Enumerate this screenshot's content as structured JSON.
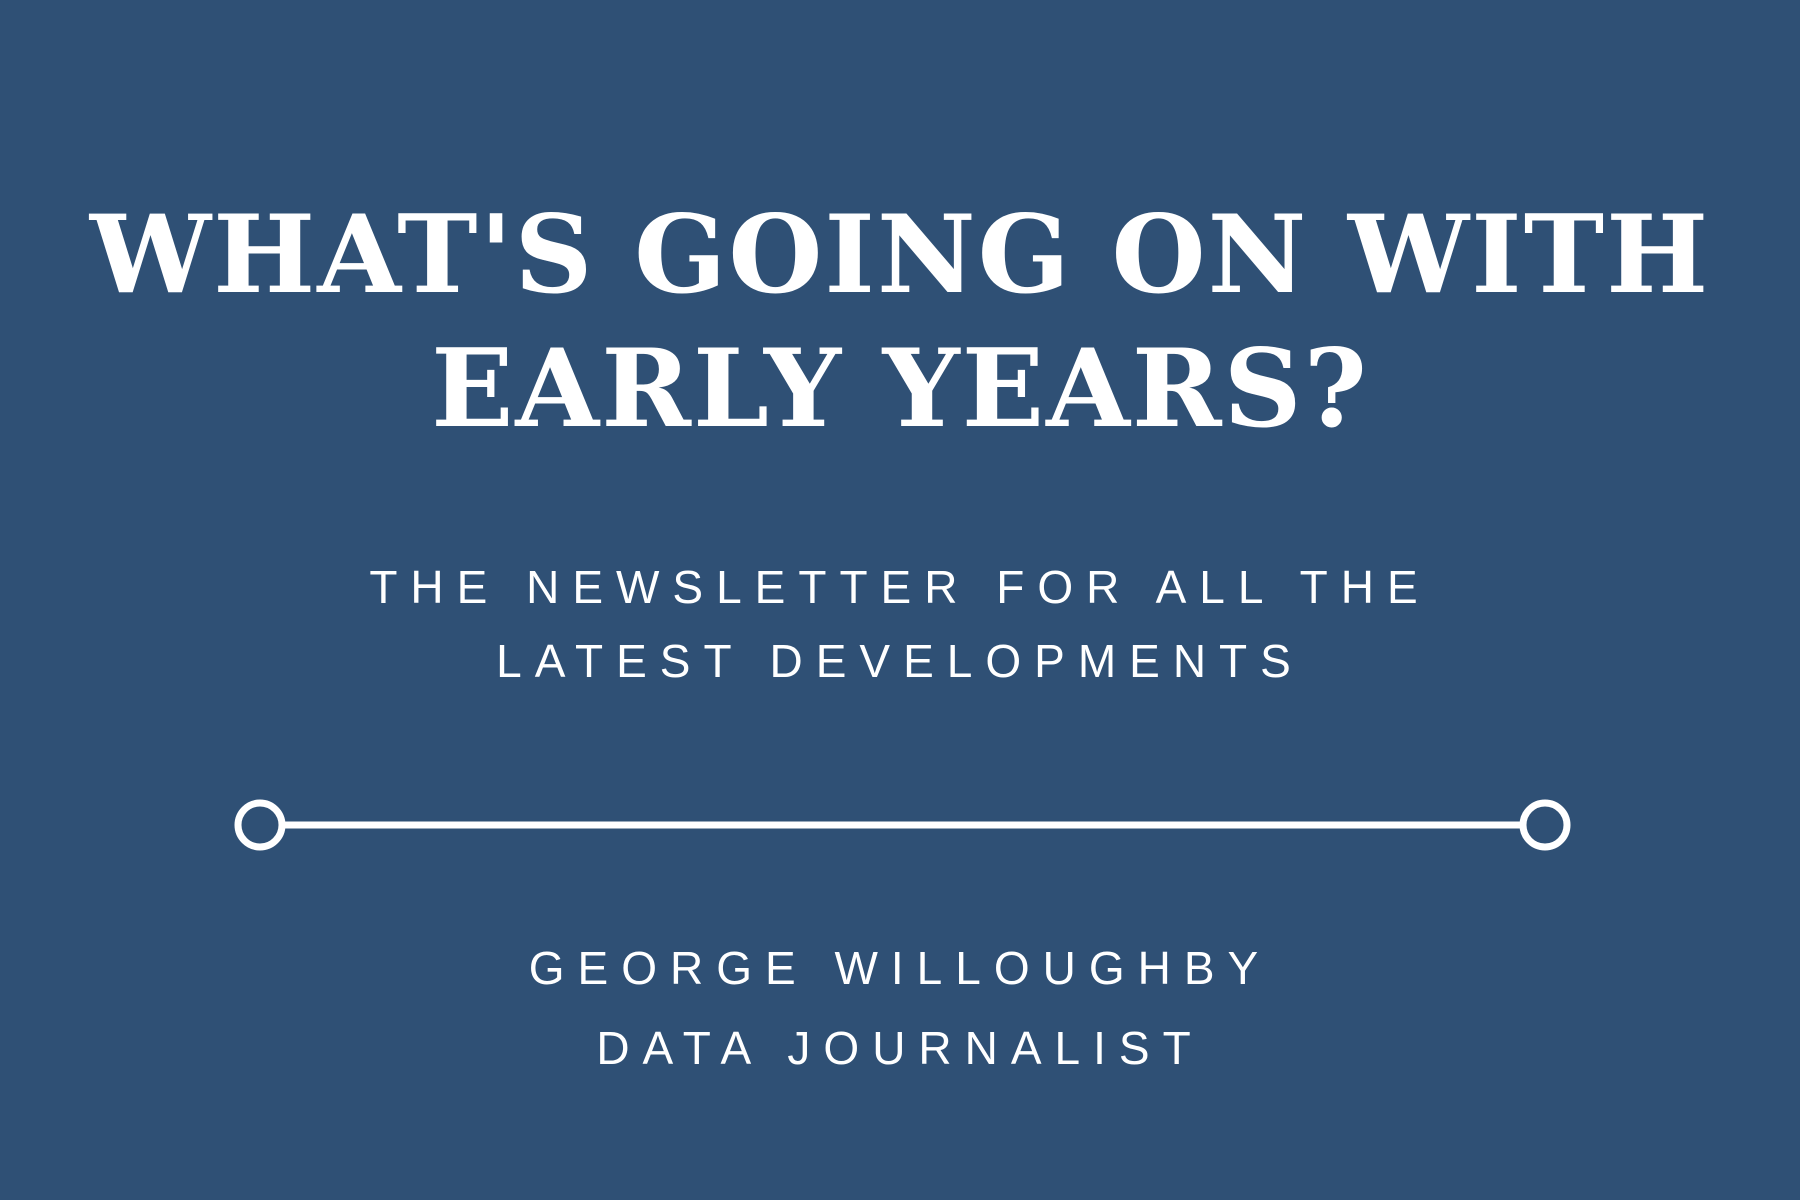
{
  "colors": {
    "background": "#2f5075",
    "foreground": "#ffffff"
  },
  "title": {
    "line1": "WHAT'S GOING ON WITH",
    "line2": "EARLY YEARS?"
  },
  "subtitle": {
    "line1": "THE NEWSLETTER FOR ALL THE",
    "line2": "LATEST DEVELOPMENTS"
  },
  "divider": {
    "style": "line-with-circle-ends"
  },
  "author": {
    "name": "GEORGE WILLOUGHBY",
    "role": "DATA JOURNALIST"
  }
}
